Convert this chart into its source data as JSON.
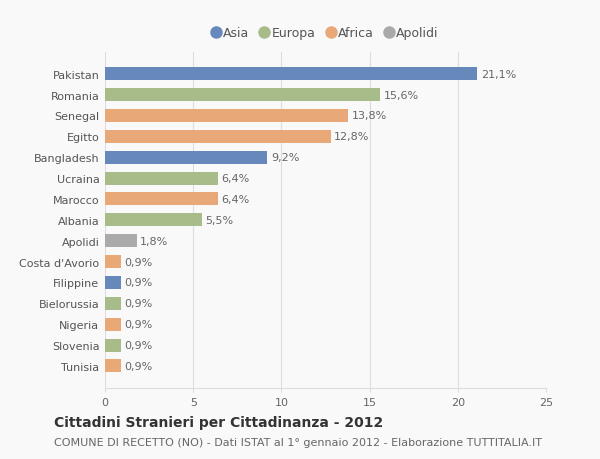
{
  "categories": [
    "Pakistan",
    "Romania",
    "Senegal",
    "Egitto",
    "Bangladesh",
    "Ucraina",
    "Marocco",
    "Albania",
    "Apolidi",
    "Costa d'Avorio",
    "Filippine",
    "Bielorussia",
    "Nigeria",
    "Slovenia",
    "Tunisia"
  ],
  "values": [
    21.1,
    15.6,
    13.8,
    12.8,
    9.2,
    6.4,
    6.4,
    5.5,
    1.8,
    0.9,
    0.9,
    0.9,
    0.9,
    0.9,
    0.9
  ],
  "labels": [
    "21,1%",
    "15,6%",
    "13,8%",
    "12,8%",
    "9,2%",
    "6,4%",
    "6,4%",
    "5,5%",
    "1,8%",
    "0,9%",
    "0,9%",
    "0,9%",
    "0,9%",
    "0,9%",
    "0,9%"
  ],
  "colors": [
    "#6688bb",
    "#a8bc8a",
    "#e8a878",
    "#e8a878",
    "#6688bb",
    "#a8bc8a",
    "#e8a878",
    "#a8bc8a",
    "#aaaaaa",
    "#e8a878",
    "#6688bb",
    "#a8bc8a",
    "#e8a878",
    "#a8bc8a",
    "#e8a878"
  ],
  "legend_labels": [
    "Asia",
    "Europa",
    "Africa",
    "Apolidi"
  ],
  "legend_colors": [
    "#6688bb",
    "#a8bc8a",
    "#e8a878",
    "#aaaaaa"
  ],
  "title": "Cittadini Stranieri per Cittadinanza - 2012",
  "subtitle": "COMUNE DI RECETTO (NO) - Dati ISTAT al 1° gennaio 2012 - Elaborazione TUTTITALIA.IT",
  "xlim": [
    0,
    25
  ],
  "xticks": [
    0,
    5,
    10,
    15,
    20,
    25
  ],
  "background_color": "#f9f9f9",
  "grid_color": "#dddddd",
  "title_fontsize": 10,
  "subtitle_fontsize": 8,
  "label_fontsize": 8,
  "tick_fontsize": 8,
  "legend_fontsize": 9,
  "bar_height": 0.62
}
